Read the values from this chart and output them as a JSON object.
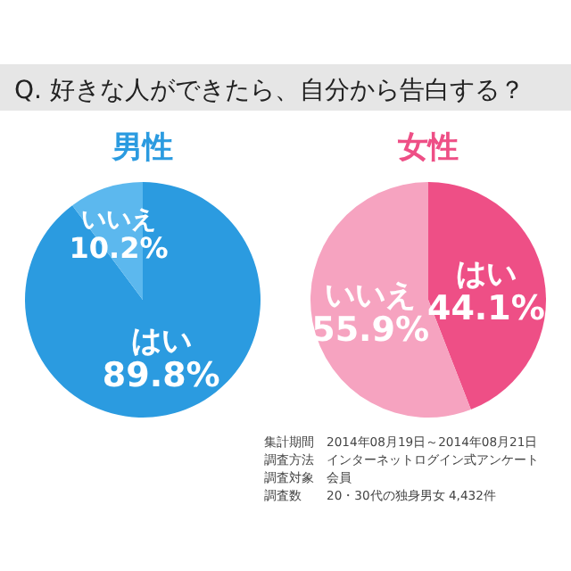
{
  "chart_data": [
    {
      "type": "other",
      "title": "Q. 好きな人ができたら、自分から告白する？"
    },
    {
      "type": "pie",
      "title": "男性",
      "categories": [
        "はい",
        "いいえ"
      ],
      "values": [
        89.8,
        10.2
      ],
      "colors": [
        "#2b9be0",
        "#5cb8ee"
      ],
      "value_labels": [
        "89.8%",
        "10.2%"
      ]
    },
    {
      "type": "pie",
      "title": "女性",
      "categories": [
        "はい",
        "いいえ"
      ],
      "values": [
        44.1,
        55.9
      ],
      "colors": [
        "#ee4f86",
        "#f6a3c0"
      ],
      "value_labels": [
        "44.1%",
        "55.9%"
      ]
    },
    {
      "type": "other",
      "annotations": [
        "集計期間　2014年08月19日～2014年08月21日",
        "調査方法　インターネットログイン式アンケート",
        "調査対象　会員",
        "調査数　　20・30代の独身男女 4,432件"
      ]
    }
  ]
}
